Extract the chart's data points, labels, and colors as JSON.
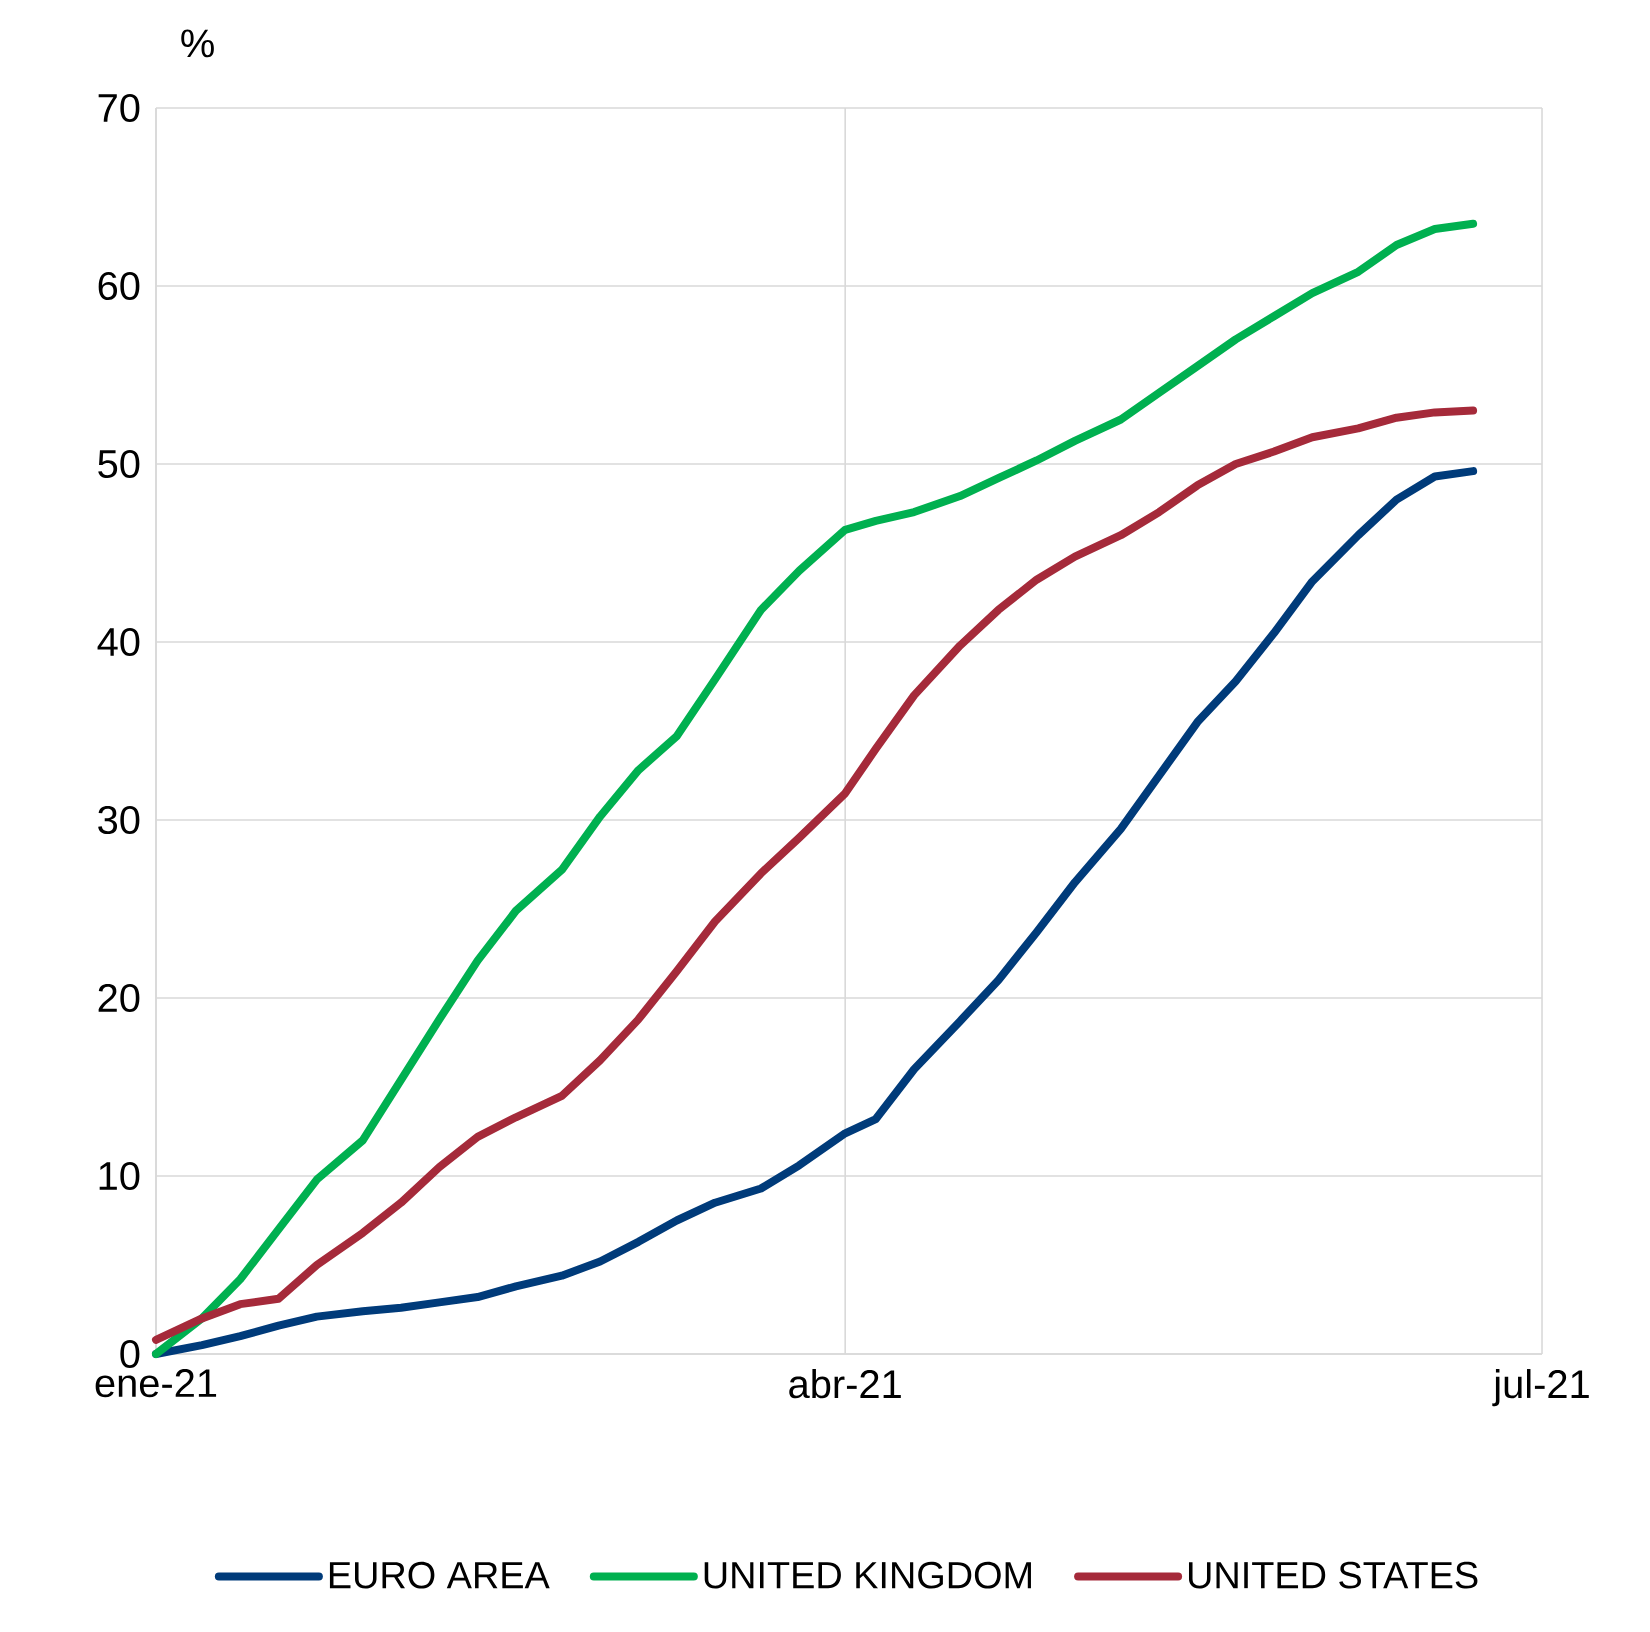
{
  "chart_data": {
    "type": "line",
    "ylabel": "%",
    "x": [
      "2021-01-01",
      "2021-01-07",
      "2021-01-12",
      "2021-01-17",
      "2021-01-22",
      "2021-01-28",
      "2021-02-02",
      "2021-02-07",
      "2021-02-12",
      "2021-02-17",
      "2021-02-23",
      "2021-02-28",
      "2021-03-05",
      "2021-03-10",
      "2021-03-15",
      "2021-03-21",
      "2021-03-26",
      "2021-04-01",
      "2021-04-05",
      "2021-04-10",
      "2021-04-16",
      "2021-04-21",
      "2021-04-26",
      "2021-05-01",
      "2021-05-07",
      "2021-05-12",
      "2021-05-17",
      "2021-05-22",
      "2021-05-27",
      "2021-06-01",
      "2021-06-07",
      "2021-06-12",
      "2021-06-17",
      "2021-06-22"
    ],
    "series": [
      {
        "name": "EURO AREA",
        "color": "#003b7a",
        "values": [
          0,
          0.5,
          1,
          1.6,
          2.1,
          2.4,
          2.6,
          2.9,
          3.2,
          3.8,
          4.4,
          5.2,
          6.3,
          7.5,
          8.5,
          9.3,
          10.6,
          12.4,
          13.2,
          16,
          18.7,
          21,
          23.7,
          26.5,
          29.5,
          32.5,
          35.5,
          37.8,
          40.5,
          43.4,
          46,
          48,
          49.3,
          49.6
        ]
      },
      {
        "name": "UNITED KINGDOM",
        "color": "#00b050",
        "values": [
          0,
          2,
          4.2,
          7,
          9.8,
          12,
          15.4,
          18.8,
          22.1,
          24.9,
          27.2,
          30.2,
          32.8,
          34.7,
          37.9,
          41.8,
          44,
          46.3,
          46.8,
          47.3,
          48.2,
          49.2,
          50.2,
          51.3,
          52.5,
          54,
          55.5,
          57,
          58.3,
          59.6,
          60.8,
          62.3,
          63.2,
          63.5
        ]
      },
      {
        "name": "UNITED STATES",
        "color": "#a52a3a",
        "values": [
          0.8,
          2,
          2.8,
          3.1,
          5,
          6.8,
          8.5,
          10.5,
          12.2,
          13.3,
          14.5,
          16.5,
          18.8,
          21.5,
          24.3,
          27,
          29,
          31.5,
          34,
          37,
          39.8,
          41.8,
          43.5,
          44.8,
          46,
          47.3,
          48.8,
          50,
          50.7,
          51.5,
          52,
          52.6,
          52.9,
          53
        ]
      }
    ],
    "xlim": [
      "2021-01-01",
      "2021-07-01"
    ],
    "xticks": [
      {
        "value": "2021-01-01",
        "label": "ene-21"
      },
      {
        "value": "2021-04-01",
        "label": "abr-21"
      },
      {
        "value": "2021-07-01",
        "label": "jul-21"
      }
    ],
    "ylim": [
      0,
      70
    ],
    "yticks": [
      0,
      10,
      20,
      30,
      40,
      50,
      60,
      70
    ],
    "grid": true,
    "legend": "bottom",
    "marker": "none",
    "line_style": "solid"
  }
}
